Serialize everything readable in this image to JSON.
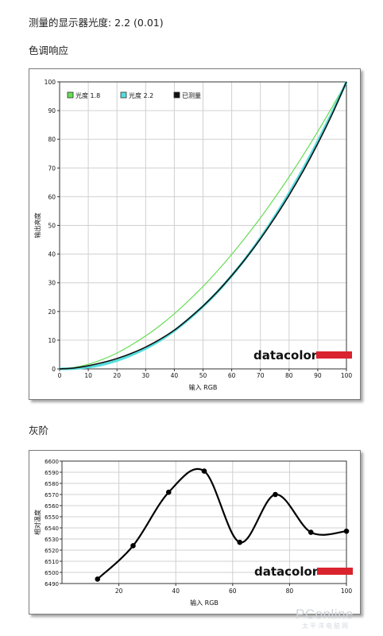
{
  "headings": {
    "measured": "测量的显示器光度: 2.2 (0.01)",
    "tone_response": "色调响应",
    "grayscale": "灰阶"
  },
  "brand": {
    "logo_text": "datacolor",
    "logo_bar_color": "#d9232e"
  },
  "watermark": {
    "text": "PConline",
    "sub": "太平洋电脑网"
  },
  "chart_data": [
    {
      "type": "line",
      "xlabel": "输入 RGB",
      "ylabel": "输出亮度",
      "xlim": [
        0,
        100
      ],
      "ylim": [
        0,
        100
      ],
      "x_ticks": [
        0,
        10,
        20,
        30,
        40,
        50,
        60,
        70,
        80,
        90,
        100
      ],
      "y_ticks": [
        0,
        10,
        20,
        30,
        40,
        50,
        60,
        70,
        80,
        90,
        100
      ],
      "grid": true,
      "legend_position": "top-left",
      "series": [
        {
          "name": "光度 1.8",
          "color": "#66dd55",
          "x": [
            0,
            5,
            10,
            15,
            20,
            25,
            30,
            35,
            40,
            45,
            50,
            55,
            60,
            65,
            70,
            75,
            80,
            85,
            90,
            95,
            100
          ],
          "y": [
            0,
            0.5,
            1.6,
            3.3,
            5.5,
            8.3,
            11.5,
            15.1,
            19.2,
            23.8,
            28.7,
            34.1,
            39.9,
            46.1,
            52.6,
            59.6,
            66.9,
            74.6,
            82.7,
            91.2,
            100
          ]
        },
        {
          "name": "光度 2.2",
          "color": "#55dddd",
          "x": [
            0,
            5,
            10,
            15,
            20,
            25,
            30,
            35,
            40,
            45,
            50,
            55,
            60,
            65,
            70,
            75,
            80,
            85,
            90,
            95,
            100
          ],
          "y": [
            0,
            0.1,
            0.6,
            1.5,
            2.9,
            4.8,
            7.1,
            9.9,
            13.3,
            17.3,
            21.8,
            26.8,
            32.5,
            38.7,
            45.6,
            53.1,
            61.2,
            69.9,
            79.3,
            89.3,
            100
          ]
        },
        {
          "name": "已测量",
          "color": "#111111",
          "x": [
            0,
            5,
            10,
            15,
            20,
            25,
            30,
            35,
            40,
            45,
            50,
            55,
            60,
            65,
            70,
            75,
            80,
            85,
            90,
            95,
            100
          ],
          "y": [
            0,
            0.3,
            1.1,
            2.2,
            3.6,
            5.4,
            7.6,
            10.3,
            13.5,
            17.5,
            21.9,
            26.9,
            32.5,
            38.6,
            45.3,
            52.6,
            60.5,
            69.1,
            78.5,
            88.7,
            100
          ]
        }
      ]
    },
    {
      "type": "line",
      "xlabel": "输入 RGB",
      "ylabel": "相对温度",
      "xlim": [
        0,
        100
      ],
      "ylim": [
        6490,
        6600
      ],
      "x_ticks": [
        20,
        40,
        60,
        80,
        100
      ],
      "y_ticks": [
        6490,
        6500,
        6510,
        6520,
        6530,
        6540,
        6550,
        6560,
        6570,
        6580,
        6590,
        6600
      ],
      "grid": true,
      "series": [
        {
          "name": "",
          "color": "#000000",
          "x": [
            12.5,
            25,
            37.5,
            50,
            62.5,
            75,
            87.5,
            100
          ],
          "y": [
            6494,
            6524,
            6572,
            6591,
            6527,
            6570,
            6536,
            6537
          ]
        }
      ]
    }
  ]
}
